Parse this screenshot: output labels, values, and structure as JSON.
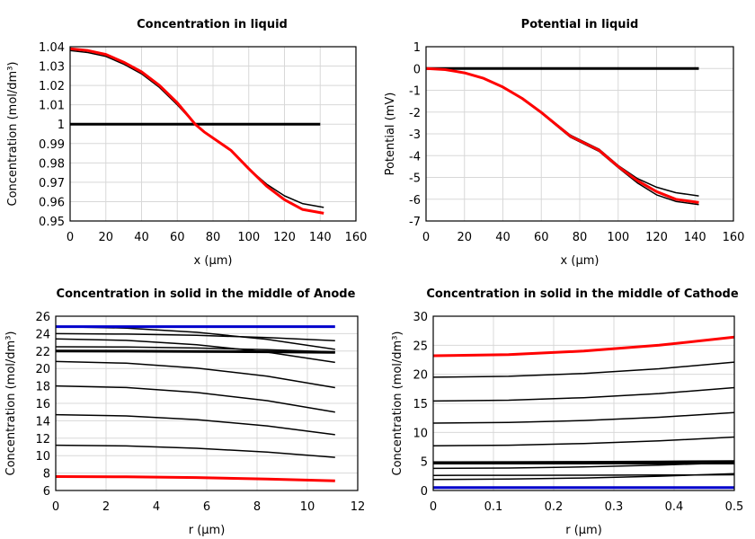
{
  "chart_data": [
    {
      "type": "line",
      "title": "Concentration in liquid",
      "xlabel": "x (µm)",
      "ylabel": "Concentration (mol/dm³)",
      "xlim": [
        0,
        160
      ],
      "ylim": [
        0.95,
        1.04
      ],
      "xticks": [
        "0",
        "20",
        "40",
        "60",
        "80",
        "100",
        "120",
        "140",
        "160"
      ],
      "yticks": [
        "0.95",
        "0.96",
        "0.97",
        "0.98",
        "0.99",
        "1",
        "1.01",
        "1.02",
        "1.03",
        "1.04"
      ],
      "grid": true,
      "series": [
        {
          "color": "#000000",
          "thick": true,
          "x": [
            0,
            140
          ],
          "y": [
            1.0,
            1.0
          ]
        },
        {
          "color": "#000000",
          "thick": false,
          "x": [
            0,
            10,
            20,
            30,
            40,
            50,
            60,
            70,
            75,
            90,
            100,
            110,
            120,
            130,
            142
          ],
          "y": [
            1.038,
            1.037,
            1.035,
            1.031,
            1.026,
            1.019,
            1.01,
            1.0,
            0.996,
            0.9865,
            0.977,
            0.969,
            0.963,
            0.959,
            0.957
          ]
        },
        {
          "color": "#ff0000",
          "thick": true,
          "x": [
            0,
            10,
            20,
            30,
            40,
            50,
            60,
            70,
            75,
            90,
            100,
            110,
            120,
            130,
            142
          ],
          "y": [
            1.039,
            1.038,
            1.036,
            1.032,
            1.027,
            1.02,
            1.011,
            1.0,
            0.996,
            0.9865,
            0.977,
            0.968,
            0.961,
            0.956,
            0.954
          ]
        }
      ]
    },
    {
      "type": "line",
      "title": "Potential in liquid",
      "xlabel": "x (µm)",
      "ylabel": "Potential (mV)",
      "xlim": [
        0,
        160
      ],
      "ylim": [
        -7,
        1
      ],
      "xticks": [
        "0",
        "20",
        "40",
        "60",
        "80",
        "100",
        "120",
        "140",
        "160"
      ],
      "yticks": [
        "-7",
        "-6",
        "-5",
        "-4",
        "-3",
        "-2",
        "-1",
        "0",
        "1"
      ],
      "grid": true,
      "series": [
        {
          "color": "#000000",
          "thick": true,
          "x": [
            0,
            142
          ],
          "y": [
            0,
            0
          ]
        },
        {
          "color": "#000000",
          "thick": false,
          "x": [
            0,
            10,
            20,
            30,
            40,
            50,
            60,
            75,
            90,
            100,
            110,
            120,
            130,
            142
          ],
          "y": [
            0,
            -0.05,
            -0.2,
            -0.45,
            -0.85,
            -1.35,
            -2.0,
            -3.05,
            -3.7,
            -4.45,
            -5.05,
            -5.45,
            -5.7,
            -5.85
          ]
        },
        {
          "color": "#000000",
          "thick": false,
          "x": [
            0,
            10,
            20,
            30,
            40,
            50,
            60,
            75,
            90,
            100,
            110,
            120,
            130,
            142
          ],
          "y": [
            0,
            -0.05,
            -0.2,
            -0.45,
            -0.85,
            -1.4,
            -2.05,
            -3.15,
            -3.8,
            -4.55,
            -5.25,
            -5.8,
            -6.1,
            -6.25
          ]
        },
        {
          "color": "#ff0000",
          "thick": true,
          "x": [
            0,
            10,
            20,
            30,
            40,
            50,
            60,
            75,
            90,
            100,
            110,
            120,
            130,
            142
          ],
          "y": [
            0,
            -0.05,
            -0.2,
            -0.45,
            -0.85,
            -1.37,
            -2.02,
            -3.1,
            -3.75,
            -4.5,
            -5.15,
            -5.65,
            -6.0,
            -6.15
          ]
        }
      ]
    },
    {
      "type": "line",
      "title": "Concentration in solid in the middle of Anode",
      "xlabel": "r (µm)",
      "ylabel": "Concentration (mol/dm³)",
      "xlim": [
        0,
        12
      ],
      "ylim": [
        6,
        26
      ],
      "xticks": [
        "0",
        "2",
        "4",
        "6",
        "8",
        "10",
        "12"
      ],
      "yticks": [
        "6",
        "8",
        "10",
        "12",
        "14",
        "16",
        "18",
        "20",
        "22",
        "24",
        "26"
      ],
      "grid": true,
      "series": [
        {
          "color": "#000000",
          "thick": false,
          "x": [
            0,
            2.8,
            5.6,
            8.4,
            11.1
          ],
          "y": [
            24.8,
            24.64,
            24.15,
            23.34,
            22.2
          ]
        },
        {
          "color": "#000000",
          "thick": false,
          "x": [
            0,
            2.8,
            5.6,
            8.4,
            11.1
          ],
          "y": [
            24.0,
            23.95,
            23.8,
            23.55,
            23.2
          ]
        },
        {
          "color": "#000000",
          "thick": false,
          "x": [
            0,
            2.8,
            5.6,
            8.4,
            11.1
          ],
          "y": [
            23.4,
            23.23,
            22.73,
            21.88,
            20.7
          ]
        },
        {
          "color": "#000000",
          "thick": false,
          "x": [
            0,
            2.8,
            5.6,
            8.4,
            11.1
          ],
          "y": [
            22.5,
            22.46,
            22.35,
            22.16,
            21.9
          ]
        },
        {
          "color": "#000000",
          "thick": true,
          "x": [
            0,
            2.8,
            5.6,
            8.4,
            11.1
          ],
          "y": [
            22.0,
            21.99,
            21.96,
            21.92,
            21.85
          ]
        },
        {
          "color": "#000000",
          "thick": false,
          "x": [
            0,
            2.8,
            5.6,
            8.4,
            11.1
          ],
          "y": [
            20.8,
            20.61,
            20.05,
            19.11,
            17.8
          ]
        },
        {
          "color": "#000000",
          "thick": false,
          "x": [
            0,
            2.8,
            5.6,
            8.4,
            11.1
          ],
          "y": [
            18.0,
            17.81,
            17.25,
            16.31,
            15.0
          ]
        },
        {
          "color": "#000000",
          "thick": false,
          "x": [
            0,
            2.8,
            5.6,
            8.4,
            11.1
          ],
          "y": [
            14.7,
            14.56,
            14.13,
            13.41,
            12.4
          ]
        },
        {
          "color": "#000000",
          "thick": false,
          "x": [
            0,
            2.8,
            5.6,
            8.4,
            11.1
          ],
          "y": [
            11.2,
            11.11,
            10.85,
            10.41,
            9.8
          ]
        },
        {
          "color": "#ff0000",
          "thick": true,
          "x": [
            0,
            2.8,
            5.6,
            8.4,
            11.1
          ],
          "y": [
            7.6,
            7.57,
            7.48,
            7.32,
            7.1
          ]
        },
        {
          "color": "#0000cc",
          "thick": true,
          "x": [
            0,
            11.1
          ],
          "y": [
            24.8,
            24.8
          ]
        }
      ]
    },
    {
      "type": "line",
      "title": "Concentration in solid in the middle of Cathode",
      "xlabel": "r (µm)",
      "ylabel": "Concentration (mol/dm³)",
      "xlim": [
        0,
        0.5
      ],
      "ylim": [
        0,
        30
      ],
      "xticks": [
        "0",
        "0.1",
        "0.2",
        "0.3",
        "0.4",
        "0.5"
      ],
      "yticks": [
        "0",
        "5",
        "10",
        "15",
        "20",
        "25",
        "30"
      ],
      "grid": true,
      "series": [
        {
          "color": "#ff0000",
          "thick": true,
          "x": [
            0,
            0.125,
            0.25,
            0.375,
            0.5
          ],
          "y": [
            23.2,
            23.4,
            24.0,
            25.0,
            26.4
          ]
        },
        {
          "color": "#000000",
          "thick": false,
          "x": [
            0,
            0.125,
            0.25,
            0.375,
            0.5
          ],
          "y": [
            19.5,
            19.66,
            20.15,
            20.96,
            22.1
          ]
        },
        {
          "color": "#000000",
          "thick": false,
          "x": [
            0,
            0.125,
            0.25,
            0.375,
            0.5
          ],
          "y": [
            15.4,
            15.54,
            15.98,
            16.69,
            17.7
          ]
        },
        {
          "color": "#000000",
          "thick": false,
          "x": [
            0,
            0.125,
            0.25,
            0.375,
            0.5
          ],
          "y": [
            11.6,
            11.71,
            12.05,
            12.61,
            13.4
          ]
        },
        {
          "color": "#000000",
          "thick": false,
          "x": [
            0,
            0.125,
            0.25,
            0.375,
            0.5
          ],
          "y": [
            7.7,
            7.79,
            8.08,
            8.54,
            9.2
          ]
        },
        {
          "color": "#000000",
          "thick": true,
          "x": [
            0,
            0.125,
            0.25,
            0.375,
            0.5
          ],
          "y": [
            4.8,
            4.81,
            4.85,
            4.91,
            5.0
          ]
        },
        {
          "color": "#000000",
          "thick": false,
          "x": [
            0,
            0.5
          ],
          "y": [
            4.6,
            4.6
          ]
        },
        {
          "color": "#000000",
          "thick": false,
          "x": [
            0,
            0.125,
            0.25,
            0.375,
            0.5
          ],
          "y": [
            3.8,
            3.86,
            4.05,
            4.36,
            4.8
          ]
        },
        {
          "color": "#000000",
          "thick": false,
          "x": [
            0,
            0.125,
            0.25,
            0.375,
            0.5
          ],
          "y": [
            2.6,
            2.61,
            2.63,
            2.66,
            2.7
          ]
        },
        {
          "color": "#000000",
          "thick": false,
          "x": [
            0,
            0.125,
            0.25,
            0.375,
            0.5
          ],
          "y": [
            1.9,
            1.96,
            2.15,
            2.46,
            2.9
          ]
        },
        {
          "color": "#0000cc",
          "thick": true,
          "x": [
            0,
            0.5
          ],
          "y": [
            0.5,
            0.5
          ]
        }
      ]
    }
  ]
}
